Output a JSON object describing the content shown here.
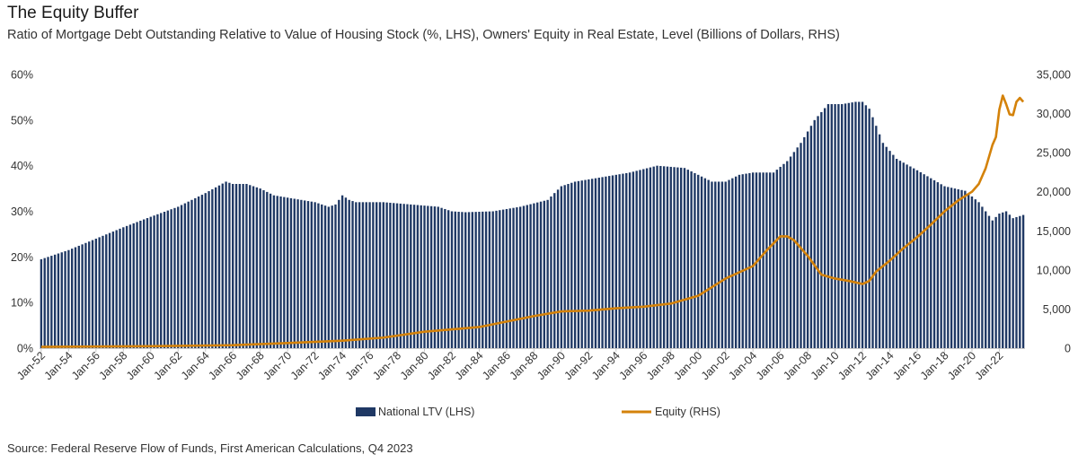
{
  "header": {
    "title": "The Equity Buffer",
    "subtitle": "Ratio of Mortgage Debt Outstanding Relative to Value of Housing Stock (%, LHS), Owners' Equity in Real Estate, Level (Billions of Dollars, RHS)"
  },
  "footer": {
    "source": "Source: Federal Reserve Flow of Funds, First American Calculations, Q4 2023"
  },
  "chart_data": {
    "type": "bar",
    "title": "The Equity Buffer",
    "colors": {
      "ltv": "#1f3864",
      "equity": "#d4820a",
      "axis": "#c9c9c9"
    },
    "x_start_year": 1952,
    "x_end_year": 2023.75,
    "x_ticks": [
      "Jan-52",
      "Jan-54",
      "Jan-56",
      "Jan-58",
      "Jan-60",
      "Jan-62",
      "Jan-64",
      "Jan-66",
      "Jan-68",
      "Jan-70",
      "Jan-72",
      "Jan-74",
      "Jan-76",
      "Jan-78",
      "Jan-80",
      "Jan-82",
      "Jan-84",
      "Jan-86",
      "Jan-88",
      "Jan-90",
      "Jan-92",
      "Jan-94",
      "Jan-96",
      "Jan-98",
      "Jan-00",
      "Jan-02",
      "Jan-04",
      "Jan-06",
      "Jan-08",
      "Jan-10",
      "Jan-12",
      "Jan-14",
      "Jan-16",
      "Jan-18",
      "Jan-20",
      "Jan-22"
    ],
    "y_left": {
      "min": 0,
      "max": 60,
      "step": 10,
      "tick_labels": [
        "0%",
        "10%",
        "20%",
        "30%",
        "40%",
        "50%",
        "60%"
      ]
    },
    "y_right": {
      "min": 0,
      "max": 35000,
      "step": 5000,
      "tick_labels": [
        "0",
        "5,000",
        "10,000",
        "15,000",
        "20,000",
        "25,000",
        "30,000",
        "35,000"
      ]
    },
    "series": [
      {
        "name": "National LTV (LHS)",
        "type": "bar",
        "axis": "left",
        "frequency": "quarterly",
        "keyframes": [
          [
            1952.0,
            19.5
          ],
          [
            1954.0,
            21.5
          ],
          [
            1956.0,
            24.0
          ],
          [
            1958.0,
            26.5
          ],
          [
            1960.0,
            28.8
          ],
          [
            1962.0,
            31.0
          ],
          [
            1964.0,
            34.0
          ],
          [
            1965.5,
            36.5
          ],
          [
            1966.0,
            36.0
          ],
          [
            1967.0,
            36.0
          ],
          [
            1968.0,
            35.0
          ],
          [
            1969.0,
            33.5
          ],
          [
            1970.0,
            33.0
          ],
          [
            1971.0,
            32.5
          ],
          [
            1972.0,
            32.0
          ],
          [
            1973.0,
            31.0
          ],
          [
            1973.5,
            31.5
          ],
          [
            1974.0,
            33.5
          ],
          [
            1974.5,
            32.5
          ],
          [
            1975.0,
            32.0
          ],
          [
            1977.0,
            32.0
          ],
          [
            1979.0,
            31.5
          ],
          [
            1981.0,
            31.0
          ],
          [
            1982.0,
            30.0
          ],
          [
            1983.0,
            29.8
          ],
          [
            1985.0,
            30.0
          ],
          [
            1987.0,
            31.0
          ],
          [
            1989.0,
            32.5
          ],
          [
            1990.0,
            35.5
          ],
          [
            1991.0,
            36.5
          ],
          [
            1993.0,
            37.5
          ],
          [
            1995.0,
            38.5
          ],
          [
            1997.0,
            40.0
          ],
          [
            1999.0,
            39.5
          ],
          [
            2000.0,
            38.0
          ],
          [
            2001.0,
            36.5
          ],
          [
            2002.0,
            36.5
          ],
          [
            2003.0,
            38.0
          ],
          [
            2004.0,
            38.5
          ],
          [
            2005.5,
            38.5
          ],
          [
            2006.5,
            41.0
          ],
          [
            2007.5,
            45.0
          ],
          [
            2008.5,
            50.0
          ],
          [
            2009.5,
            53.5
          ],
          [
            2010.5,
            53.5
          ],
          [
            2011.5,
            54.0
          ],
          [
            2012.0,
            54.0
          ],
          [
            2012.5,
            52.5
          ],
          [
            2013.5,
            45.0
          ],
          [
            2014.5,
            41.5
          ],
          [
            2016.0,
            39.0
          ],
          [
            2018.0,
            35.5
          ],
          [
            2019.5,
            34.5
          ],
          [
            2020.5,
            32.0
          ],
          [
            2021.0,
            30.0
          ],
          [
            2021.5,
            28.0
          ],
          [
            2022.0,
            29.5
          ],
          [
            2022.5,
            30.0
          ],
          [
            2023.0,
            28.5
          ],
          [
            2023.75,
            29.2
          ]
        ]
      },
      {
        "name": "Equity (RHS)",
        "type": "line",
        "axis": "right",
        "keyframes": [
          [
            1952.0,
            170
          ],
          [
            1960.0,
            250
          ],
          [
            1966.0,
            380
          ],
          [
            1970.0,
            650
          ],
          [
            1974.0,
            950
          ],
          [
            1977.0,
            1350
          ],
          [
            1980.0,
            2100
          ],
          [
            1984.0,
            2700
          ],
          [
            1986.0,
            3400
          ],
          [
            1988.0,
            4100
          ],
          [
            1990.0,
            4700
          ],
          [
            1992.0,
            4800
          ],
          [
            1994.0,
            5100
          ],
          [
            1996.0,
            5300
          ],
          [
            1998.0,
            5700
          ],
          [
            2000.0,
            6700
          ],
          [
            2002.0,
            8900
          ],
          [
            2004.0,
            10500
          ],
          [
            2005.0,
            12500
          ],
          [
            2006.0,
            14300
          ],
          [
            2006.5,
            14300
          ],
          [
            2007.0,
            13800
          ],
          [
            2008.0,
            11800
          ],
          [
            2009.0,
            9400
          ],
          [
            2010.0,
            8900
          ],
          [
            2011.0,
            8600
          ],
          [
            2012.0,
            8200
          ],
          [
            2012.5,
            8600
          ],
          [
            2013.0,
            9800
          ],
          [
            2014.0,
            11200
          ],
          [
            2015.0,
            12800
          ],
          [
            2016.0,
            14200
          ],
          [
            2017.0,
            15800
          ],
          [
            2018.0,
            17500
          ],
          [
            2019.0,
            18900
          ],
          [
            2020.0,
            20000
          ],
          [
            2020.5,
            21000
          ],
          [
            2021.0,
            23000
          ],
          [
            2021.5,
            26000
          ],
          [
            2021.75,
            27000
          ],
          [
            2022.0,
            30500
          ],
          [
            2022.25,
            32300
          ],
          [
            2022.5,
            31200
          ],
          [
            2022.75,
            29900
          ],
          [
            2023.0,
            29800
          ],
          [
            2023.25,
            31500
          ],
          [
            2023.5,
            32000
          ],
          [
            2023.75,
            31500
          ]
        ]
      }
    ],
    "legend": {
      "position": "bottom",
      "entries": [
        "National LTV (LHS)",
        "Equity (RHS)"
      ]
    }
  }
}
